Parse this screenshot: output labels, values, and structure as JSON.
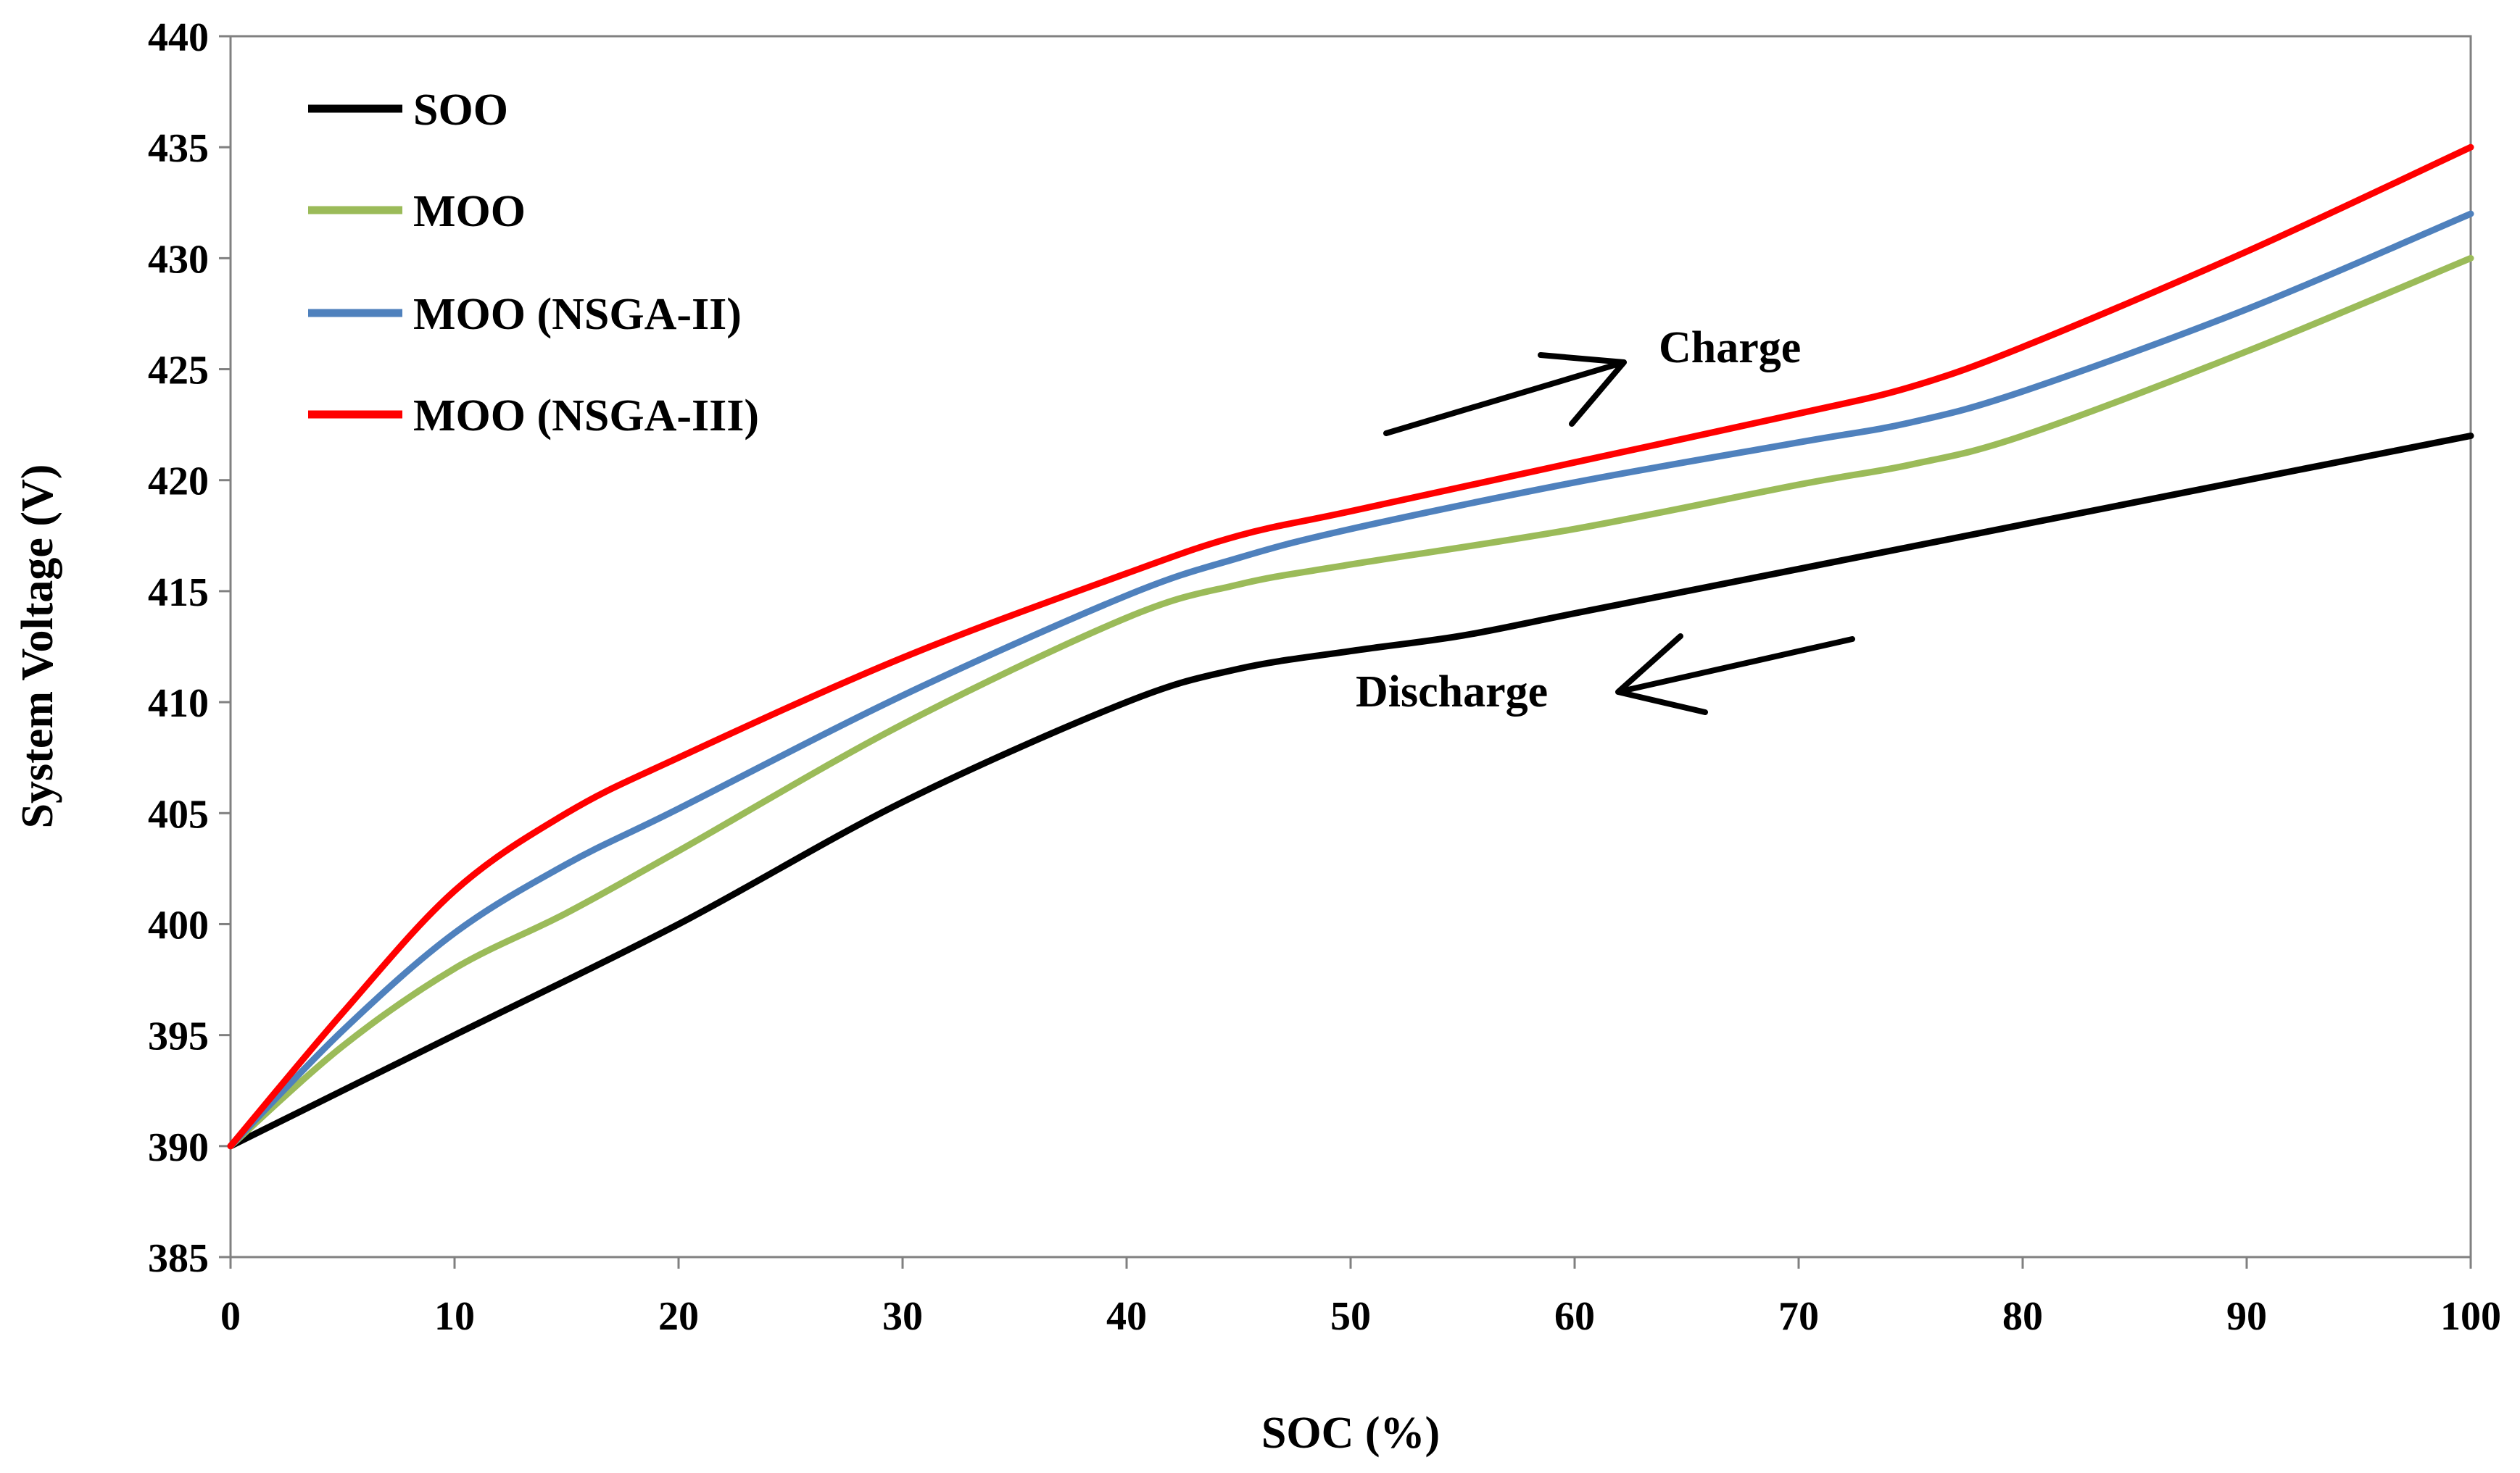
{
  "chart_data": {
    "type": "line",
    "title": "",
    "xlabel": "SOC (%)",
    "ylabel": "System Voltage (V)",
    "xlim": [
      0,
      100
    ],
    "ylim": [
      385,
      440
    ],
    "xticks": [
      0,
      10,
      20,
      30,
      40,
      50,
      60,
      70,
      80,
      90,
      100
    ],
    "yticks": [
      385,
      390,
      395,
      400,
      405,
      410,
      415,
      420,
      425,
      430,
      435,
      440
    ],
    "grid": false,
    "legend_position": "top-left",
    "series": [
      {
        "name": "SOO",
        "color": "#000000",
        "x": [
          0,
          10,
          20,
          30,
          40,
          45,
          50,
          55,
          60,
          70,
          80,
          90,
          100
        ],
        "y": [
          390,
          395,
          400,
          405.5,
          410,
          411.5,
          412.3,
          413,
          414,
          416,
          418,
          420,
          422
        ]
      },
      {
        "name": "MOO",
        "color": "#9bbb59",
        "x": [
          0,
          5,
          10,
          15,
          20,
          30,
          40,
          45,
          50,
          60,
          70,
          75,
          80,
          90,
          100
        ],
        "y": [
          390,
          394.5,
          398,
          400.5,
          403.3,
          409,
          413.8,
          415.3,
          416.2,
          417.8,
          419.8,
          420.7,
          422,
          425.8,
          430
        ]
      },
      {
        "name": "MOO (NSGA-II)",
        "color": "#4f81bd",
        "x": [
          0,
          5,
          10,
          15,
          20,
          30,
          40,
          45,
          50,
          60,
          70,
          75,
          80,
          90,
          100
        ],
        "y": [
          390,
          395.2,
          399.6,
          402.7,
          405.2,
          410.3,
          414.8,
          416.5,
          417.8,
          419.9,
          421.7,
          422.6,
          424,
          427.7,
          432
        ]
      },
      {
        "name": "MOO (NSGA-III)",
        "color": "#ff0000",
        "x": [
          0,
          5,
          10,
          15,
          20,
          30,
          40,
          45,
          50,
          60,
          70,
          75,
          80,
          90,
          100
        ],
        "y": [
          390,
          396,
          401.5,
          405,
          407.5,
          412,
          415.8,
          417.5,
          418.6,
          420.8,
          423,
          424.2,
          426,
          430.3,
          435
        ]
      }
    ],
    "annotations": [
      {
        "text": "Charge",
        "x": 63,
        "y": 424.5
      },
      {
        "text": "Discharge",
        "x": 55,
        "y": 409.7
      }
    ]
  }
}
